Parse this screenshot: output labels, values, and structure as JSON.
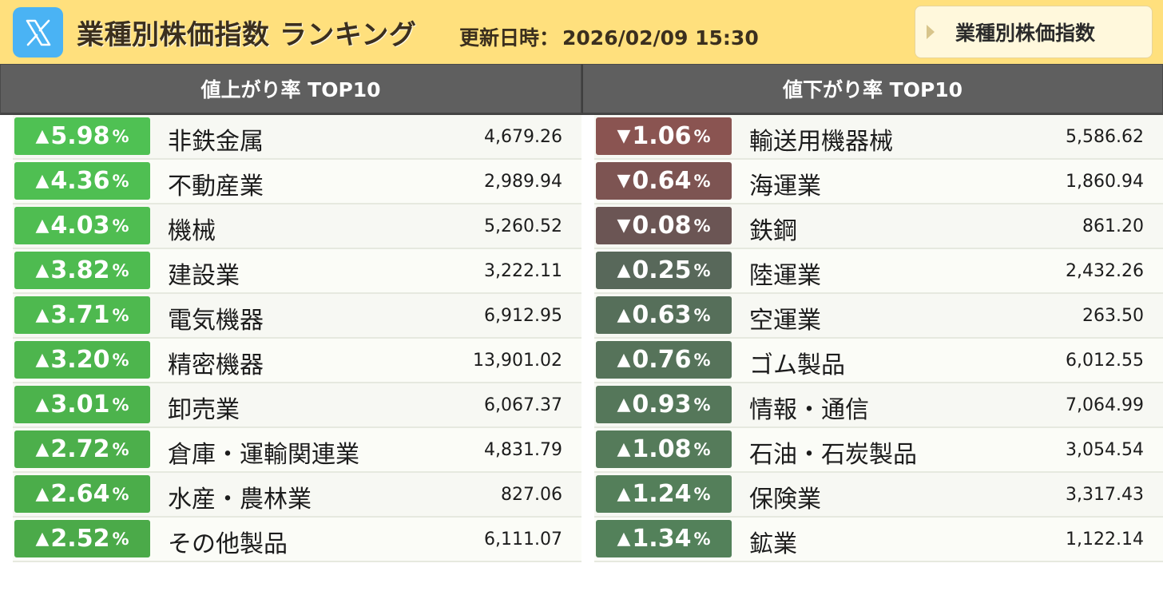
{
  "header": {
    "title": "業種別株価指数 ランキング",
    "updated_label": "更新日時：",
    "updated_value": "2026/02/09 15:30",
    "nav_button_label": "業種別株価指数",
    "logo_icon": "x-logo-icon",
    "colors": {
      "bar": "#ffe07d",
      "logo": "#4ab3f4"
    }
  },
  "gainers": {
    "title": "値上がり率 TOP10",
    "rows": [
      {
        "arrow": "▲",
        "change": "5.98",
        "unit": "%",
        "name": "非鉄金属",
        "value": "4,679.26",
        "color": "#4fc153"
      },
      {
        "arrow": "▲",
        "change": "4.36",
        "unit": "%",
        "name": "不動産業",
        "value": "2,989.94",
        "color": "#4fbf52"
      },
      {
        "arrow": "▲",
        "change": "4.03",
        "unit": "%",
        "name": "機械",
        "value": "5,260.52",
        "color": "#4fbd51"
      },
      {
        "arrow": "▲",
        "change": "3.82",
        "unit": "%",
        "name": "建設業",
        "value": "3,222.11",
        "color": "#4ebb50"
      },
      {
        "arrow": "▲",
        "change": "3.71",
        "unit": "%",
        "name": "電気機器",
        "value": "6,912.95",
        "color": "#4eb94f"
      },
      {
        "arrow": "▲",
        "change": "3.20",
        "unit": "%",
        "name": "精密機器",
        "value": "13,901.02",
        "color": "#4db54d"
      },
      {
        "arrow": "▲",
        "change": "3.01",
        "unit": "%",
        "name": "卸売業",
        "value": "6,067.37",
        "color": "#4cb34c"
      },
      {
        "arrow": "▲",
        "change": "2.72",
        "unit": "%",
        "name": "倉庫・運輸関連業",
        "value": "4,831.79",
        "color": "#4caf4b"
      },
      {
        "arrow": "▲",
        "change": "2.64",
        "unit": "%",
        "name": "水産・農林業",
        "value": "827.06",
        "color": "#4bad4a"
      },
      {
        "arrow": "▲",
        "change": "2.52",
        "unit": "%",
        "name": "その他製品",
        "value": "6,111.07",
        "color": "#4baa49"
      }
    ]
  },
  "losers": {
    "title": "値下がり率 TOP10",
    "rows": [
      {
        "arrow": "▼",
        "change": "1.06",
        "unit": "%",
        "name": "輸送用機器械",
        "value": "5,586.62",
        "color": "#8a5451"
      },
      {
        "arrow": "▼",
        "change": "0.64",
        "unit": "%",
        "name": "海運業",
        "value": "1,860.94",
        "color": "#7d5452"
      },
      {
        "arrow": "▼",
        "change": "0.08",
        "unit": "%",
        "name": "鉄鋼",
        "value": "861.20",
        "color": "#6b5554"
      },
      {
        "arrow": "▲",
        "change": "0.25",
        "unit": "%",
        "name": "陸運業",
        "value": "2,432.26",
        "color": "#58685a"
      },
      {
        "arrow": "▲",
        "change": "0.63",
        "unit": "%",
        "name": "空運業",
        "value": "263.50",
        "color": "#566f5a"
      },
      {
        "arrow": "▲",
        "change": "0.76",
        "unit": "%",
        "name": "ゴム製品",
        "value": "6,012.55",
        "color": "#56735a"
      },
      {
        "arrow": "▲",
        "change": "0.93",
        "unit": "%",
        "name": "情報・通信",
        "value": "7,064.99",
        "color": "#55775a"
      },
      {
        "arrow": "▲",
        "change": "1.08",
        "unit": "%",
        "name": "石油・石炭製品",
        "value": "3,054.54",
        "color": "#557b5a"
      },
      {
        "arrow": "▲",
        "change": "1.24",
        "unit": "%",
        "name": "保険業",
        "value": "3,317.43",
        "color": "#547f5a"
      },
      {
        "arrow": "▲",
        "change": "1.34",
        "unit": "%",
        "name": "鉱業",
        "value": "1,122.14",
        "color": "#53815a"
      }
    ]
  }
}
